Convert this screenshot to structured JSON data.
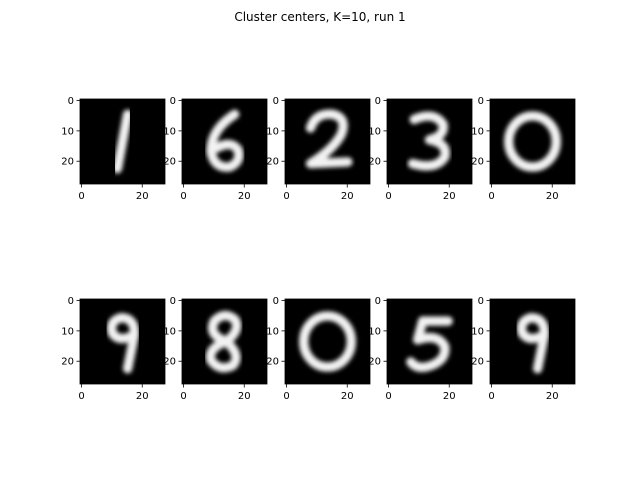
{
  "chart_data": {
    "type": "heatmap",
    "title": "Cluster centers, K=10, run 1",
    "grid": false,
    "image_size": [
      28,
      28
    ],
    "colormap": "gray",
    "xticks": [
      0,
      20
    ],
    "yticks": [
      0,
      10,
      20
    ],
    "panels": [
      {
        "digit": "1",
        "row": 0,
        "col": 0
      },
      {
        "digit": "6",
        "row": 0,
        "col": 1
      },
      {
        "digit": "2",
        "row": 0,
        "col": 2
      },
      {
        "digit": "3",
        "row": 0,
        "col": 3
      },
      {
        "digit": "0",
        "row": 0,
        "col": 4
      },
      {
        "digit": "9",
        "row": 1,
        "col": 0
      },
      {
        "digit": "8",
        "row": 1,
        "col": 1
      },
      {
        "digit": "0",
        "row": 1,
        "col": 2
      },
      {
        "digit": "5",
        "row": 1,
        "col": 3
      },
      {
        "digit": "9",
        "row": 1,
        "col": 4
      }
    ]
  }
}
